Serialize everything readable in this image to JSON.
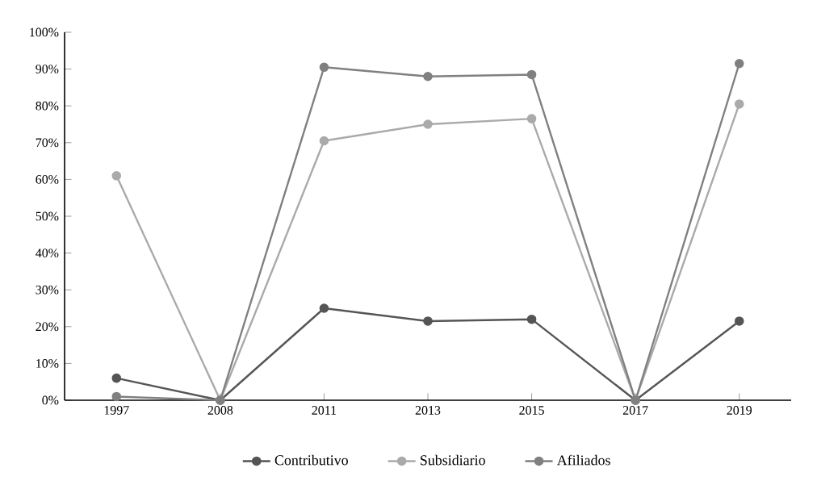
{
  "chart_data": {
    "type": "line",
    "categories": [
      "1997",
      "2008",
      "2011",
      "2013",
      "2015",
      "2017",
      "2019"
    ],
    "series": [
      {
        "name": "Contributivo",
        "color": "#555555",
        "values": [
          6,
          0,
          25,
          21.5,
          22,
          0,
          21.5
        ]
      },
      {
        "name": "Subsidiario",
        "color": "#aaaaaa",
        "values": [
          61,
          0,
          70.5,
          75,
          76.5,
          0,
          80.5
        ]
      },
      {
        "name": "Afiliados",
        "color": "#808080",
        "values": [
          1,
          0,
          90.5,
          88,
          88.5,
          0,
          91.5
        ]
      }
    ],
    "ylim": [
      0,
      100
    ],
    "yticks": [
      {
        "value": 0,
        "label": "0%"
      },
      {
        "value": 10,
        "label": "10%"
      },
      {
        "value": 20,
        "label": "20%"
      },
      {
        "value": 30,
        "label": "30%"
      },
      {
        "value": 40,
        "label": "40%"
      },
      {
        "value": 50,
        "label": "50%"
      },
      {
        "value": 60,
        "label": "60%"
      },
      {
        "value": 70,
        "label": "70%"
      },
      {
        "value": 80,
        "label": "80%"
      },
      {
        "value": 90,
        "label": "90%"
      },
      {
        "value": 100,
        "label": "100%"
      }
    ],
    "grid": false,
    "legend": "bottom",
    "marker": "circle",
    "line_style": "solid"
  }
}
